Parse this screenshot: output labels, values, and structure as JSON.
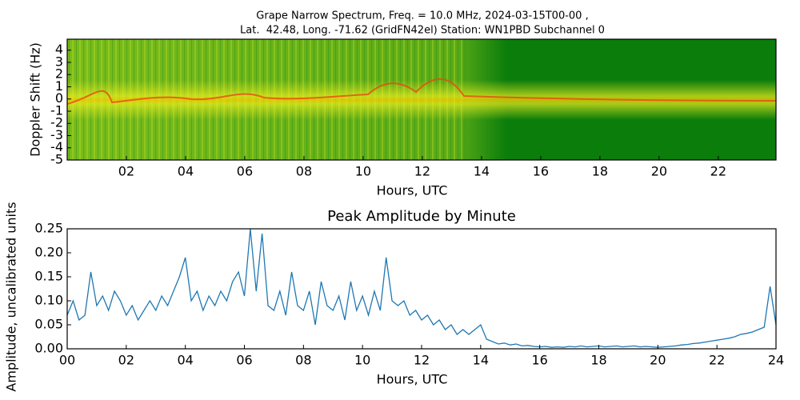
{
  "chart_data": [
    {
      "type": "spectrogram",
      "title": "Grape Narrow Spectrum, Freq. = 10.0 MHz, 2024-03-15T00-00 ,",
      "subtitle": "Lat.  42.48, Long. -71.62 (GridFN42el) Station: WN1PBD Subchannel 0",
      "xlabel": "Hours, UTC",
      "ylabel": "Doppler Shift (Hz)",
      "xlim": [
        0,
        23.95
      ],
      "xticks": [
        {
          "value": 2,
          "label": "02"
        },
        {
          "value": 4,
          "label": "04"
        },
        {
          "value": 6,
          "label": "06"
        },
        {
          "value": 8,
          "label": "08"
        },
        {
          "value": 10,
          "label": "10"
        },
        {
          "value": 12,
          "label": "12"
        },
        {
          "value": 14,
          "label": "14"
        },
        {
          "value": 16,
          "label": "16"
        },
        {
          "value": 18,
          "label": "18"
        },
        {
          "value": 20,
          "label": "20"
        },
        {
          "value": 22,
          "label": "22"
        }
      ],
      "ylim": [
        -5,
        4.9
      ],
      "yticks": [
        -5,
        -4,
        -3,
        -2,
        -1,
        0,
        1,
        2,
        3,
        4
      ]
    },
    {
      "type": "line",
      "title": "Peak Amplitude by Minute",
      "xlabel": "Hours, UTC",
      "ylabel": "Amplitude, uncalibrated units",
      "color": "#1f77b4",
      "xlim": [
        0,
        24
      ],
      "xticks": [
        {
          "value": 0,
          "label": "00"
        },
        {
          "value": 2,
          "label": "02"
        },
        {
          "value": 4,
          "label": "04"
        },
        {
          "value": 6,
          "label": "06"
        },
        {
          "value": 8,
          "label": "08"
        },
        {
          "value": 10,
          "label": "10"
        },
        {
          "value": 12,
          "label": "12"
        },
        {
          "value": 14,
          "label": "14"
        },
        {
          "value": 16,
          "label": "16"
        },
        {
          "value": 18,
          "label": "18"
        },
        {
          "value": 20,
          "label": "20"
        },
        {
          "value": 22,
          "label": "22"
        },
        {
          "value": 24,
          "label": "24"
        }
      ],
      "ylim": [
        0,
        0.25
      ],
      "yticks": [
        {
          "value": 0,
          "label": "0.00"
        },
        0.05,
        {
          "value": 0.1,
          "label": "0.10"
        },
        0.15,
        {
          "value": 0.2,
          "label": "0.20"
        },
        0.25
      ],
      "x": [
        0,
        0.2,
        0.4,
        0.6,
        0.8,
        1,
        1.2,
        1.4,
        1.6,
        1.8,
        2,
        2.2,
        2.4,
        2.6,
        2.8,
        3,
        3.2,
        3.4,
        3.6,
        3.8,
        4,
        4.2,
        4.4,
        4.6,
        4.8,
        5,
        5.2,
        5.4,
        5.6,
        5.8,
        6,
        6.2,
        6.4,
        6.6,
        6.8,
        7,
        7.2,
        7.4,
        7.6,
        7.8,
        8,
        8.2,
        8.4,
        8.6,
        8.8,
        9,
        9.2,
        9.4,
        9.6,
        9.8,
        10,
        10.2,
        10.4,
        10.6,
        10.8,
        11,
        11.2,
        11.4,
        11.6,
        11.8,
        12,
        12.2,
        12.4,
        12.6,
        12.8,
        13,
        13.2,
        13.4,
        13.6,
        13.8,
        14,
        14.2,
        14.4,
        14.6,
        14.8,
        15,
        15.2,
        15.4,
        15.6,
        15.8,
        16,
        16.2,
        16.4,
        16.6,
        16.8,
        17,
        17.2,
        17.4,
        17.6,
        17.8,
        18,
        18.2,
        18.4,
        18.6,
        18.8,
        19,
        19.2,
        19.4,
        19.6,
        19.8,
        20,
        20.2,
        20.4,
        20.6,
        20.8,
        21,
        21.2,
        21.4,
        21.6,
        21.8,
        22,
        22.2,
        22.4,
        22.6,
        22.8,
        23,
        23.2,
        23.4,
        23.6,
        23.8,
        24
      ],
      "values": [
        0.07,
        0.1,
        0.06,
        0.07,
        0.16,
        0.09,
        0.11,
        0.08,
        0.12,
        0.1,
        0.07,
        0.09,
        0.06,
        0.08,
        0.1,
        0.08,
        0.11,
        0.09,
        0.12,
        0.15,
        0.19,
        0.1,
        0.12,
        0.08,
        0.11,
        0.09,
        0.12,
        0.1,
        0.14,
        0.16,
        0.11,
        0.25,
        0.12,
        0.24,
        0.09,
        0.08,
        0.12,
        0.07,
        0.16,
        0.09,
        0.08,
        0.12,
        0.05,
        0.14,
        0.09,
        0.08,
        0.11,
        0.06,
        0.14,
        0.08,
        0.11,
        0.07,
        0.12,
        0.08,
        0.19,
        0.1,
        0.09,
        0.1,
        0.07,
        0.08,
        0.06,
        0.07,
        0.05,
        0.06,
        0.04,
        0.05,
        0.03,
        0.04,
        0.03,
        0.04,
        0.05,
        0.02,
        0.015,
        0.01,
        0.012,
        0.008,
        0.01,
        0.006,
        0.007,
        0.005,
        0.004,
        0.005,
        0.003,
        0.004,
        0.003,
        0.005,
        0.004,
        0.006,
        0.004,
        0.005,
        0.006,
        0.004,
        0.005,
        0.006,
        0.004,
        0.005,
        0.006,
        0.004,
        0.005,
        0.004,
        0.003,
        0.004,
        0.005,
        0.006,
        0.008,
        0.009,
        0.011,
        0.012,
        0.014,
        0.016,
        0.018,
        0.02,
        0.022,
        0.025,
        0.03,
        0.032,
        0.035,
        0.04,
        0.045,
        0.13,
        0.05
      ]
    }
  ]
}
